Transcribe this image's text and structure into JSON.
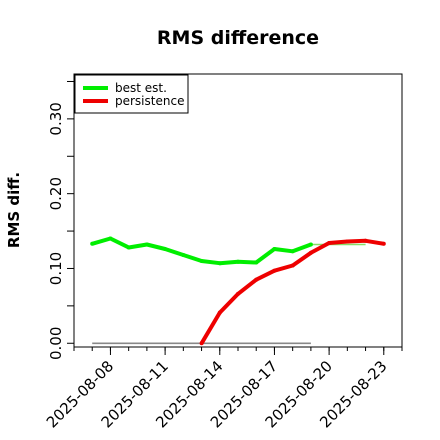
{
  "chart_data": {
    "type": "line",
    "title": "RMS difference",
    "xlabel": "",
    "ylabel": "RMS diff.",
    "ylim": [
      -0.005,
      0.36
    ],
    "xlim": [
      "2025-08-06",
      "2025-08-24"
    ],
    "grid": false,
    "legend_position": "top-left",
    "x_tick_labels": [
      "2025-08-08",
      "2025-08-11",
      "2025-08-14",
      "2025-08-17",
      "2025-08-20",
      "2025-08-23"
    ],
    "y_tick_labels": [
      "0.00",
      "0.10",
      "0.20",
      "0.30"
    ],
    "y_ticks": [
      0.0,
      0.05,
      0.1,
      0.15,
      0.2,
      0.25,
      0.3,
      0.35
    ],
    "series": [
      {
        "name": "best est.",
        "color": "#00ee00",
        "x": [
          "2025-08-07",
          "2025-08-08",
          "2025-08-09",
          "2025-08-10",
          "2025-08-11",
          "2025-08-12",
          "2025-08-13",
          "2025-08-14",
          "2025-08-15",
          "2025-08-16",
          "2025-08-17",
          "2025-08-18",
          "2025-08-19"
        ],
        "values": [
          0.133,
          0.14,
          0.128,
          0.132,
          0.126,
          0.118,
          0.11,
          0.107,
          0.109,
          0.108,
          0.126,
          0.123,
          0.132
        ]
      },
      {
        "name": "persistence",
        "color": "#ee0000",
        "x": [
          "2025-08-13",
          "2025-08-14",
          "2025-08-15",
          "2025-08-16",
          "2025-08-17",
          "2025-08-18",
          "2025-08-19",
          "2025-08-20",
          "2025-08-21",
          "2025-08-22",
          "2025-08-23"
        ],
        "values": [
          0.0,
          0.041,
          0.066,
          0.085,
          0.097,
          0.104,
          0.121,
          0.134,
          0.136,
          0.137,
          0.133
        ]
      }
    ],
    "extra_lines": [
      {
        "color": "#888888",
        "x": [
          "2025-08-07",
          "2025-08-19"
        ],
        "values": [
          0.0,
          0.0
        ]
      },
      {
        "color": "#88dd66",
        "x": [
          "2025-08-19",
          "2025-08-22"
        ],
        "values": [
          0.132,
          0.132
        ]
      }
    ]
  }
}
